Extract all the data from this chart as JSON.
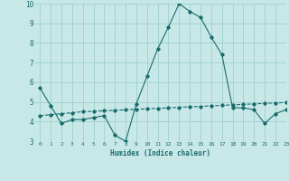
{
  "x": [
    0,
    1,
    2,
    3,
    4,
    5,
    6,
    7,
    8,
    9,
    10,
    11,
    12,
    13,
    14,
    15,
    16,
    17,
    18,
    19,
    20,
    21,
    22,
    23
  ],
  "line1_y": [
    5.7,
    4.8,
    3.9,
    4.1,
    4.1,
    4.2,
    4.3,
    3.3,
    3.0,
    4.9,
    6.3,
    7.7,
    8.8,
    10.0,
    9.6,
    9.3,
    8.3,
    7.4,
    4.7,
    4.7,
    4.6,
    3.9,
    4.4,
    4.6
  ],
  "line2_y": [
    4.3,
    4.35,
    4.4,
    4.45,
    4.5,
    4.52,
    4.55,
    4.57,
    4.6,
    4.62,
    4.65,
    4.67,
    4.7,
    4.72,
    4.75,
    4.77,
    4.8,
    4.82,
    4.85,
    4.87,
    4.9,
    4.92,
    4.95,
    4.97
  ],
  "line_color": "#1a6b6b",
  "bg_color": "#c8e8e8",
  "grid_color": "#9ecece",
  "xlabel": "Humidex (Indice chaleur)",
  "ylim": [
    3,
    10
  ],
  "xlim": [
    -0.5,
    23
  ],
  "yticks": [
    3,
    4,
    5,
    6,
    7,
    8,
    9,
    10
  ],
  "xticks": [
    0,
    1,
    2,
    3,
    4,
    5,
    6,
    7,
    8,
    9,
    10,
    11,
    12,
    13,
    14,
    15,
    16,
    17,
    18,
    19,
    20,
    21,
    22,
    23
  ]
}
